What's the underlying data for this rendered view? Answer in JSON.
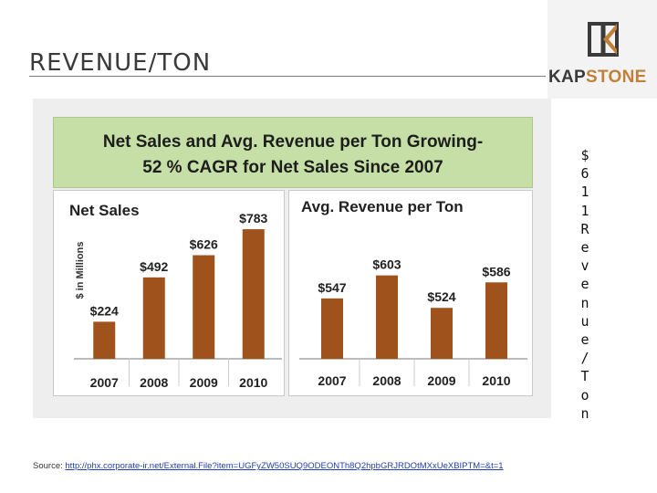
{
  "slide": {
    "title": "REVENUE/TON"
  },
  "logo": {
    "kap": "KAP",
    "stone": "STONE",
    "colors": {
      "dark": "#3a3a3a",
      "accent": "#c0803a"
    }
  },
  "banner": {
    "line1": "Net Sales and Avg. Revenue per Ton Growing-",
    "line2": "52 % CAGR for Net Sales Since 2007"
  },
  "side_text": [
    "$",
    "6",
    "1",
    "1",
    "R",
    "e",
    "v",
    "e",
    "n",
    "u",
    "e",
    "/",
    "T",
    "o",
    "n"
  ],
  "source": {
    "label": "Source: ",
    "url": "http://phx.corporate-ir.net/External.File?item=UGFyZW50SUQ9ODEONTh8Q2hpbGRJRDOtMXxUeXBIPTM=&t=1"
  },
  "colors": {
    "bar": "#a0521c",
    "banner": "#c5dfa6"
  },
  "chart_data": [
    {
      "type": "bar",
      "title": "Net Sales",
      "ylabel": "$ in Millions",
      "categories": [
        "2007",
        "2008",
        "2009",
        "2010"
      ],
      "values": [
        224,
        492,
        626,
        783
      ],
      "data_labels": [
        "$224",
        "$492",
        "$626",
        "$783"
      ],
      "ylim": [
        0,
        800
      ],
      "grid": false
    },
    {
      "type": "bar",
      "title": "Avg. Revenue per Ton",
      "categories": [
        "2007",
        "2008",
        "2009",
        "2010"
      ],
      "values": [
        547,
        603,
        524,
        586
      ],
      "data_labels": [
        "$547",
        "$603",
        "$524",
        "$586"
      ],
      "ylim": [
        400,
        620
      ],
      "grid": false
    }
  ]
}
